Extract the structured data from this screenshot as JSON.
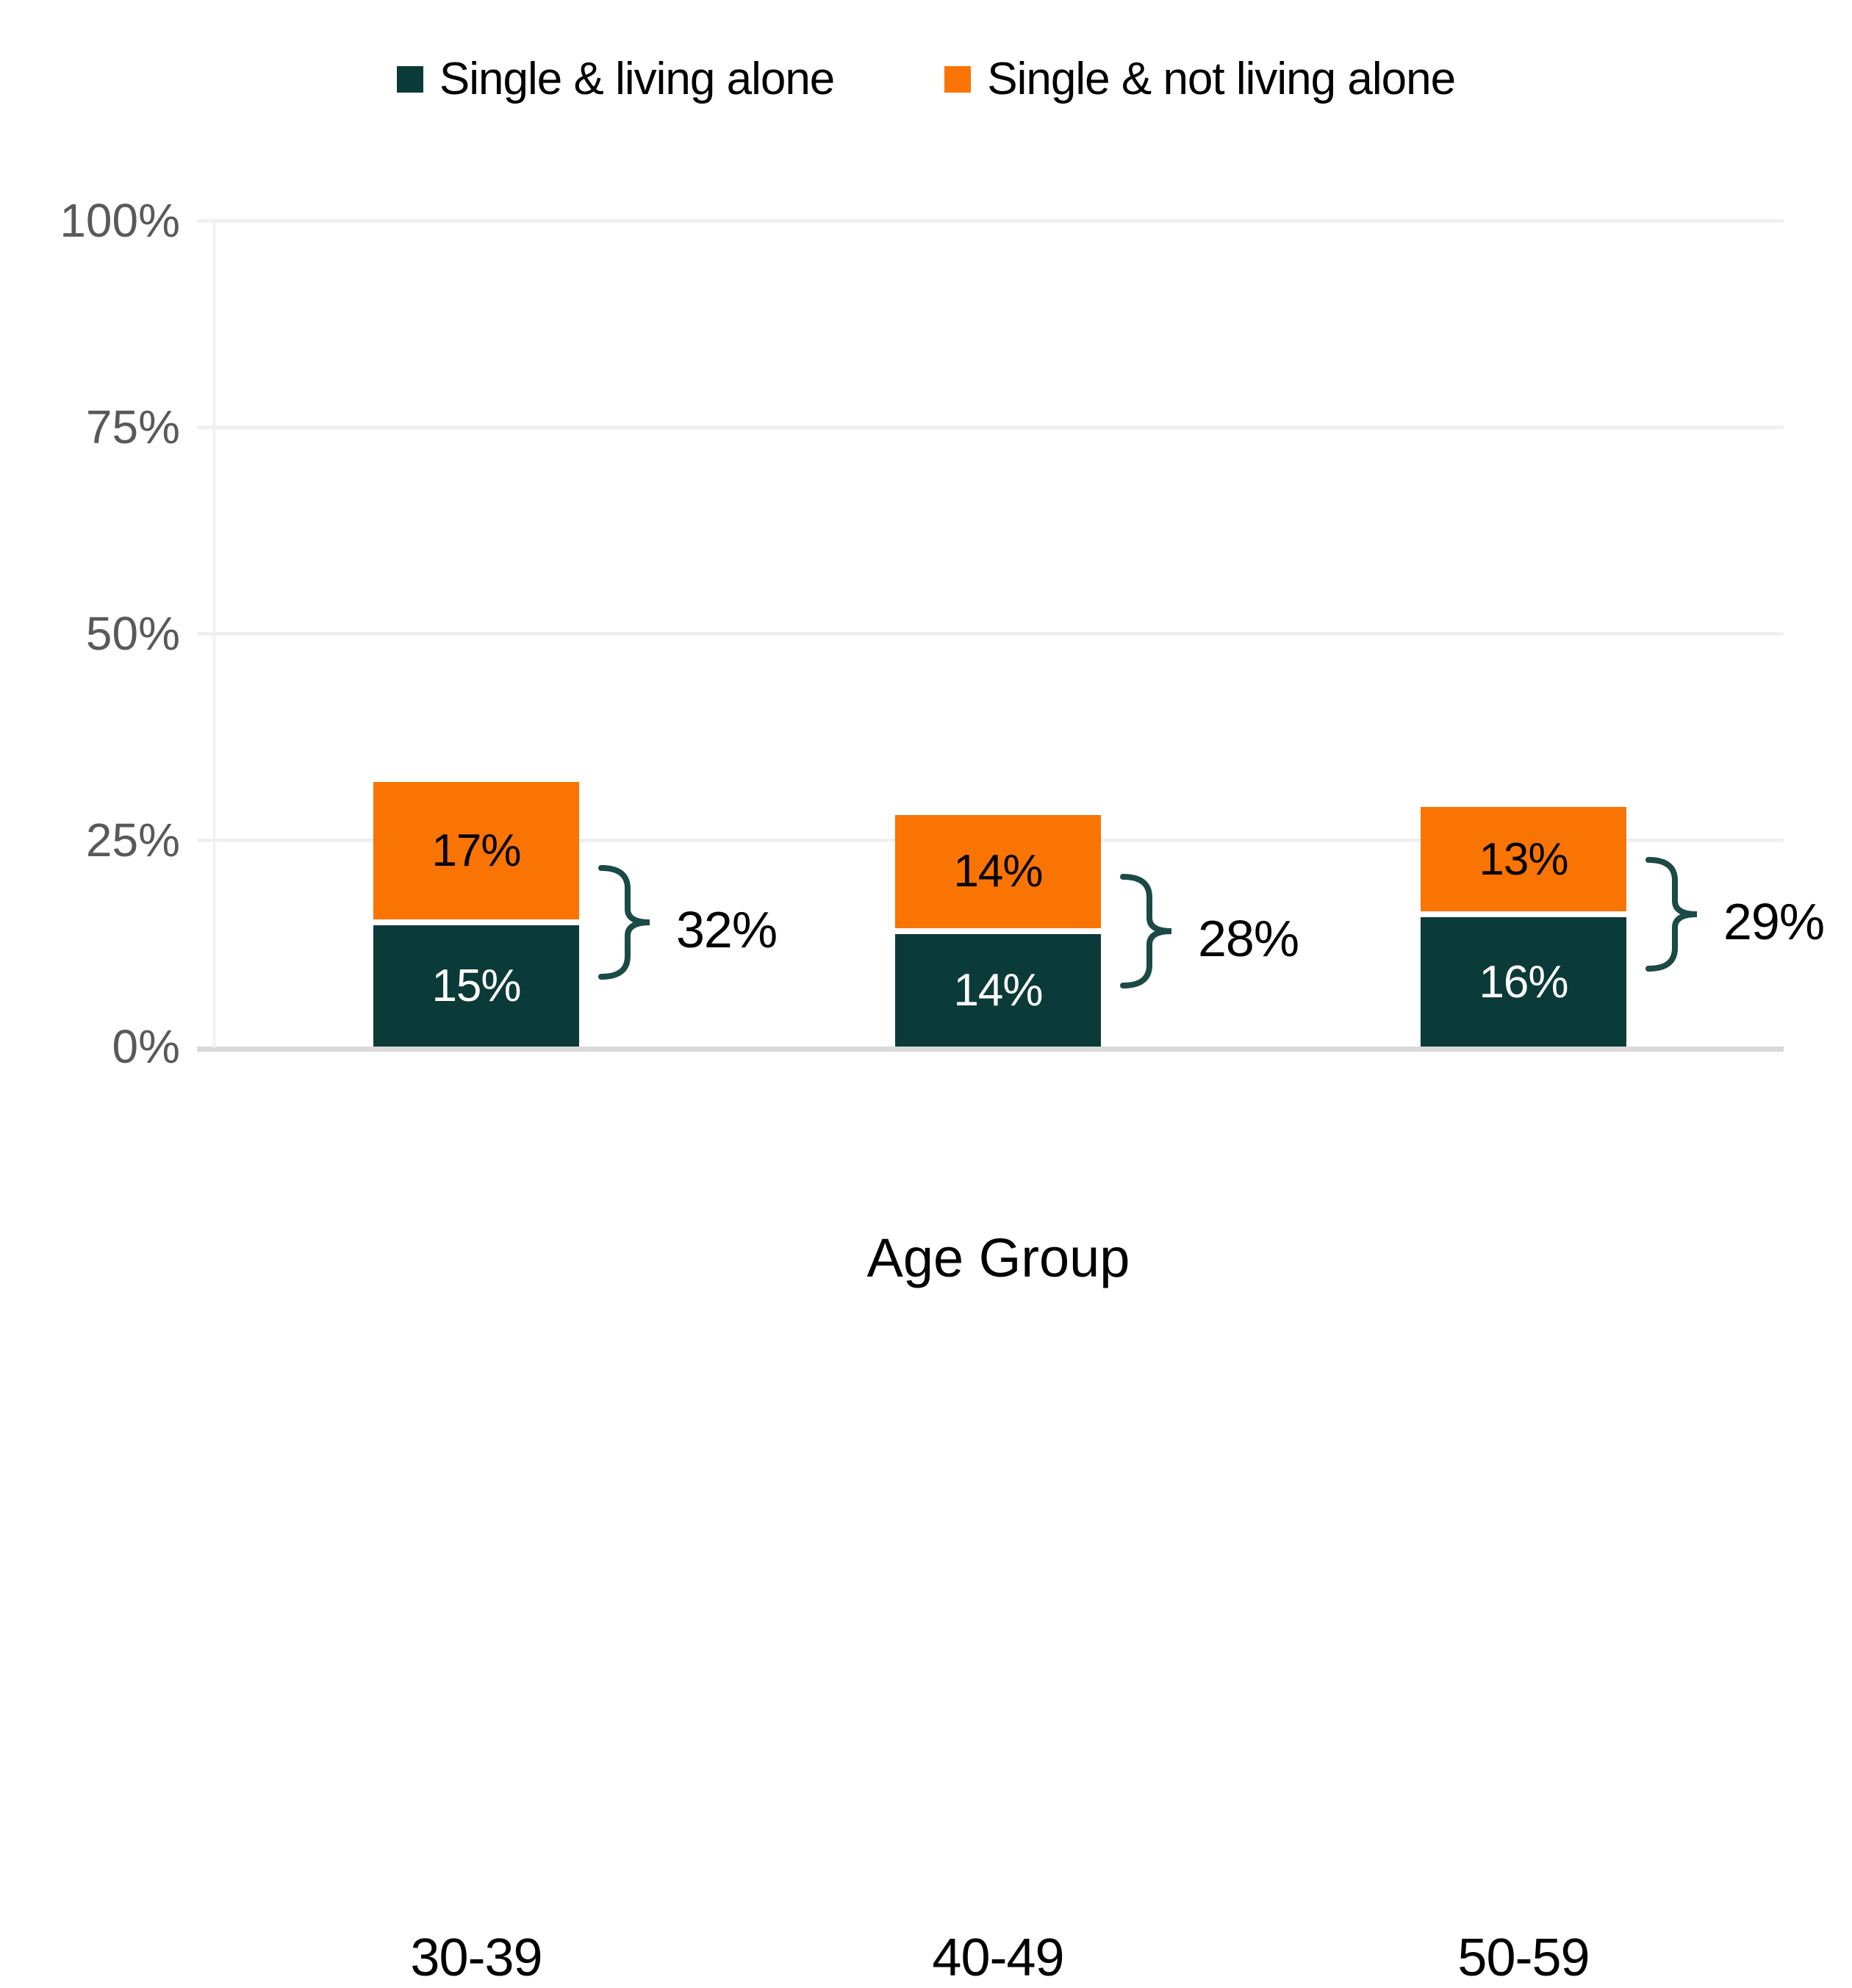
{
  "chart_data": {
    "type": "bar",
    "stacked": true,
    "title": "",
    "xlabel": "Age Group",
    "ylabel": "",
    "categories": [
      "30-39",
      "40-49",
      "50-59"
    ],
    "series": [
      {
        "name": "Single & living alone",
        "color": "#0B3B38",
        "label_color": "#FFFFFF",
        "values": [
          15,
          14,
          16
        ]
      },
      {
        "name": "Single & not living alone",
        "color": "#FA7404",
        "label_color": "#000000",
        "values": [
          17,
          14,
          13
        ]
      }
    ],
    "segment_labels": [
      [
        "15%",
        "14%",
        "16%"
      ],
      [
        "17%",
        "14%",
        "13%"
      ]
    ],
    "totals": [
      "32%",
      "28%",
      "29%"
    ],
    "y_ticks": [
      "0%",
      "25%",
      "50%",
      "75%",
      "100%"
    ],
    "ylim": [
      0,
      100
    ],
    "grid": "horizontal",
    "legend_position": "top",
    "brace_color": "#1B4A47",
    "gridline_color": "#F0F0F0",
    "axisline_color": "#D9D9D9",
    "ytick_color": "#595959"
  }
}
